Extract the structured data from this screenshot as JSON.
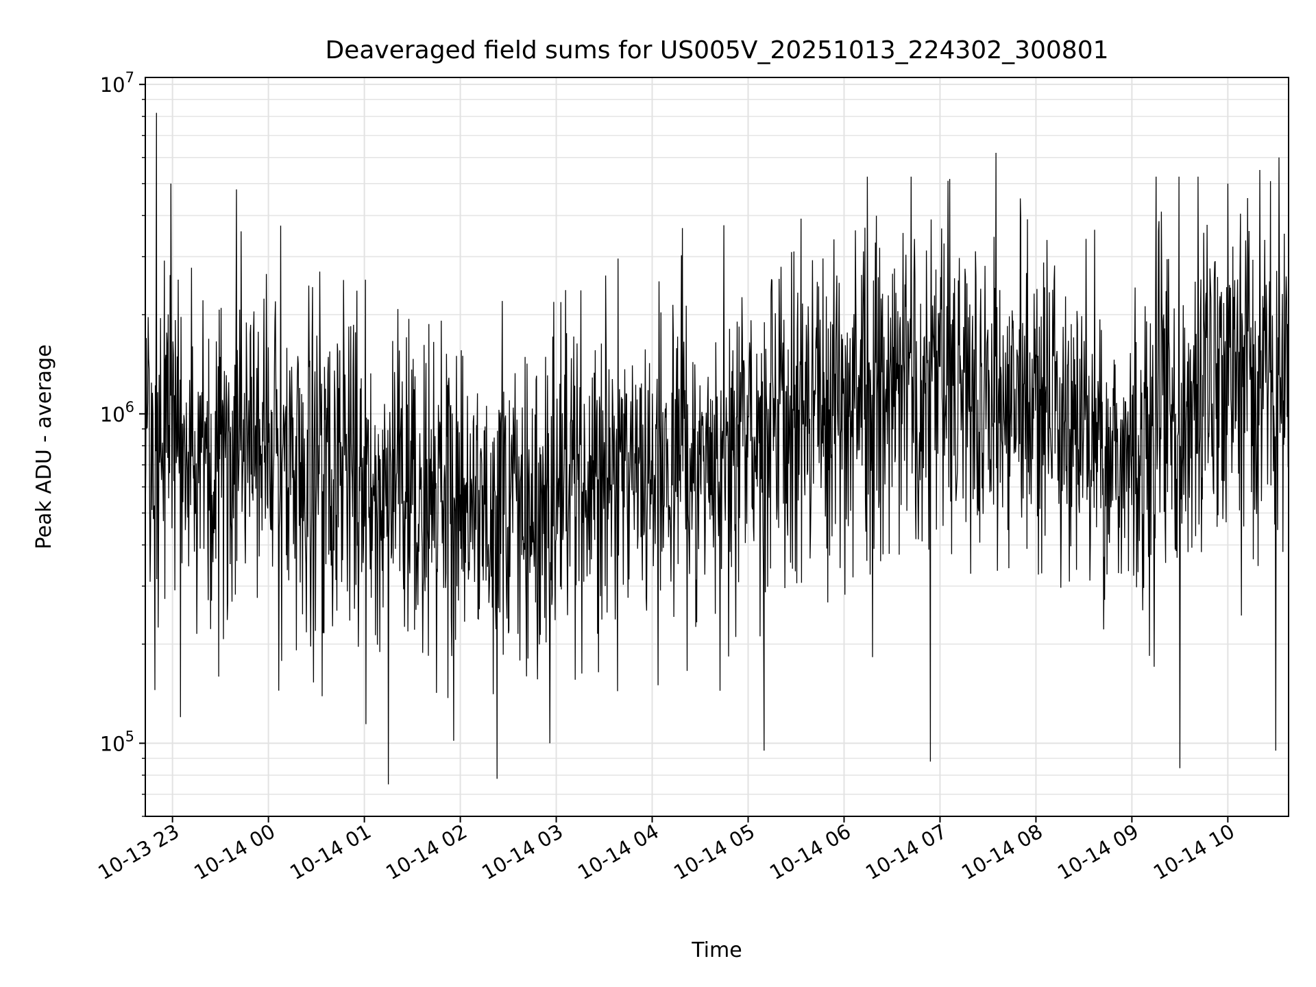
{
  "chart_data": {
    "type": "line",
    "title": "Deaveraged field sums for US005V_20251013_224302_300801",
    "xlabel": "Time",
    "ylabel": "Peak ADU - average",
    "yscale": "log",
    "ylim": [
      60000,
      10500000
    ],
    "xlim": [
      "2025-10-13 22:43",
      "2025-10-14 10:38"
    ],
    "grid": true,
    "line_color": "#000000",
    "x_ticks": [
      {
        "t": "2025-10-13 23:00",
        "label": "10-13 23"
      },
      {
        "t": "2025-10-14 00:00",
        "label": "10-14 00"
      },
      {
        "t": "2025-10-14 01:00",
        "label": "10-14 01"
      },
      {
        "t": "2025-10-14 02:00",
        "label": "10-14 02"
      },
      {
        "t": "2025-10-14 03:00",
        "label": "10-14 03"
      },
      {
        "t": "2025-10-14 04:00",
        "label": "10-14 04"
      },
      {
        "t": "2025-10-14 05:00",
        "label": "10-14 05"
      },
      {
        "t": "2025-10-14 06:00",
        "label": "10-14 06"
      },
      {
        "t": "2025-10-14 07:00",
        "label": "10-14 07"
      },
      {
        "t": "2025-10-14 08:00",
        "label": "10-14 08"
      },
      {
        "t": "2025-10-14 09:00",
        "label": "10-14 09"
      },
      {
        "t": "2025-10-14 10:00",
        "label": "10-14 10"
      }
    ],
    "y_ticks": [
      {
        "v": 100000,
        "base": "10",
        "exp": "5"
      },
      {
        "v": 1000000,
        "base": "10",
        "exp": "6"
      },
      {
        "v": 10000000,
        "base": "10",
        "exp": "7"
      }
    ],
    "series": [
      {
        "level_trend": [
          {
            "t": "2025-10-13 22:43",
            "v": 800000
          },
          {
            "t": "2025-10-13 23:00",
            "v": 850000
          },
          {
            "t": "2025-10-14 00:00",
            "v": 780000
          },
          {
            "t": "2025-10-14 01:00",
            "v": 650000
          },
          {
            "t": "2025-10-14 02:00",
            "v": 520000
          },
          {
            "t": "2025-10-14 03:00",
            "v": 560000
          },
          {
            "t": "2025-10-14 04:00",
            "v": 700000
          },
          {
            "t": "2025-10-14 05:00",
            "v": 900000
          },
          {
            "t": "2025-10-14 06:00",
            "v": 1050000
          },
          {
            "t": "2025-10-14 07:00",
            "v": 1300000
          },
          {
            "t": "2025-10-14 08:00",
            "v": 1000000
          },
          {
            "t": "2025-10-14 09:00",
            "v": 800000
          },
          {
            "t": "2025-10-14 10:00",
            "v": 1250000
          },
          {
            "t": "2025-10-14 10:38",
            "v": 1400000
          }
        ],
        "notable_points": [
          {
            "t": "2025-10-13 22:50",
            "v": 8200000
          },
          {
            "t": "2025-10-13 22:49",
            "v": 145000
          },
          {
            "t": "2025-10-13 22:59",
            "v": 5000000
          },
          {
            "t": "2025-10-13 23:05",
            "v": 120000
          },
          {
            "t": "2025-10-13 23:40",
            "v": 4800000
          },
          {
            "t": "2025-10-14 01:15",
            "v": 75000
          },
          {
            "t": "2025-10-14 02:23",
            "v": 78000
          },
          {
            "t": "2025-10-14 02:56",
            "v": 100000
          },
          {
            "t": "2025-10-14 05:10",
            "v": 95000
          },
          {
            "t": "2025-10-14 06:54",
            "v": 88000
          },
          {
            "t": "2025-10-14 07:05",
            "v": 5100000
          },
          {
            "t": "2025-10-14 07:35",
            "v": 6200000
          },
          {
            "t": "2025-10-14 09:30",
            "v": 84000
          },
          {
            "t": "2025-10-14 10:00",
            "v": 5000000
          },
          {
            "t": "2025-10-14 10:20",
            "v": 5500000
          },
          {
            "t": "2025-10-14 10:30",
            "v": 95000
          },
          {
            "t": "2025-10-14 10:32",
            "v": 6000000
          }
        ]
      }
    ]
  }
}
